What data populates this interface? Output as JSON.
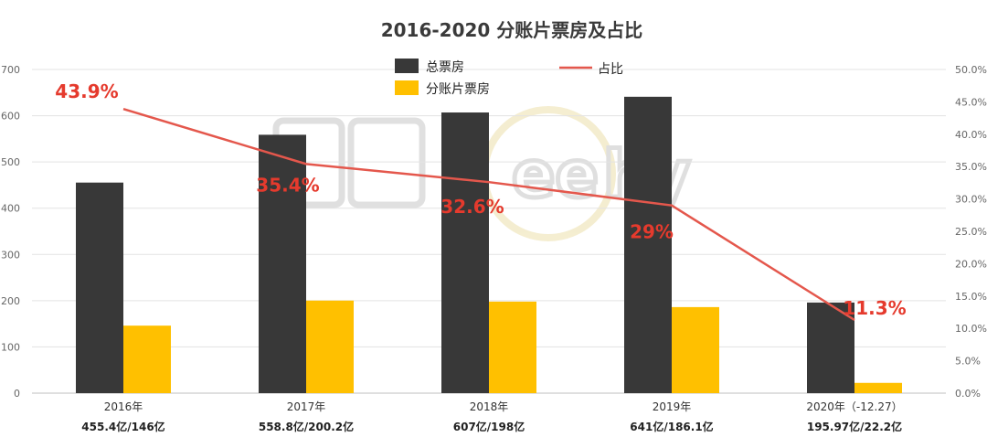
{
  "chart_data": {
    "type": "bar",
    "title": "2016-2020 分账片票房及占比",
    "categories": [
      "2016年",
      "2017年",
      "2018年",
      "2019年",
      "2020年（-12.27）"
    ],
    "sub_labels": [
      "455.4亿/146亿",
      "558.8亿/200.2亿",
      "607亿/198亿",
      "641亿/186.1亿",
      "195.97亿/22.2亿"
    ],
    "series": [
      {
        "name": "总票房",
        "values": [
          455.4,
          558.8,
          607,
          641,
          195.97
        ],
        "color": "#383838"
      },
      {
        "name": "分账片票房",
        "values": [
          146,
          200.2,
          198,
          186.1,
          22.2
        ],
        "color": "#ffc000"
      }
    ],
    "line": {
      "name": "占比",
      "values": [
        43.9,
        35.4,
        32.6,
        29,
        11.3
      ],
      "labels": [
        "43.9%",
        "35.4%",
        "32.6%",
        "29%",
        "11.3%"
      ],
      "color": "#e4574c"
    },
    "ylim": [
      0,
      700
    ],
    "yticks": [
      "0",
      "100",
      "200",
      "300",
      "400",
      "500",
      "600",
      "700"
    ],
    "y2lim": [
      0,
      50
    ],
    "y2ticks": [
      "0.0%",
      "5.0%",
      "10.0%",
      "15.0%",
      "20.0%",
      "25.0%",
      "30.0%",
      "35.0%",
      "40.0%",
      "45.0%",
      "50.0%"
    ],
    "grid": true,
    "legend_position": "top-center"
  }
}
